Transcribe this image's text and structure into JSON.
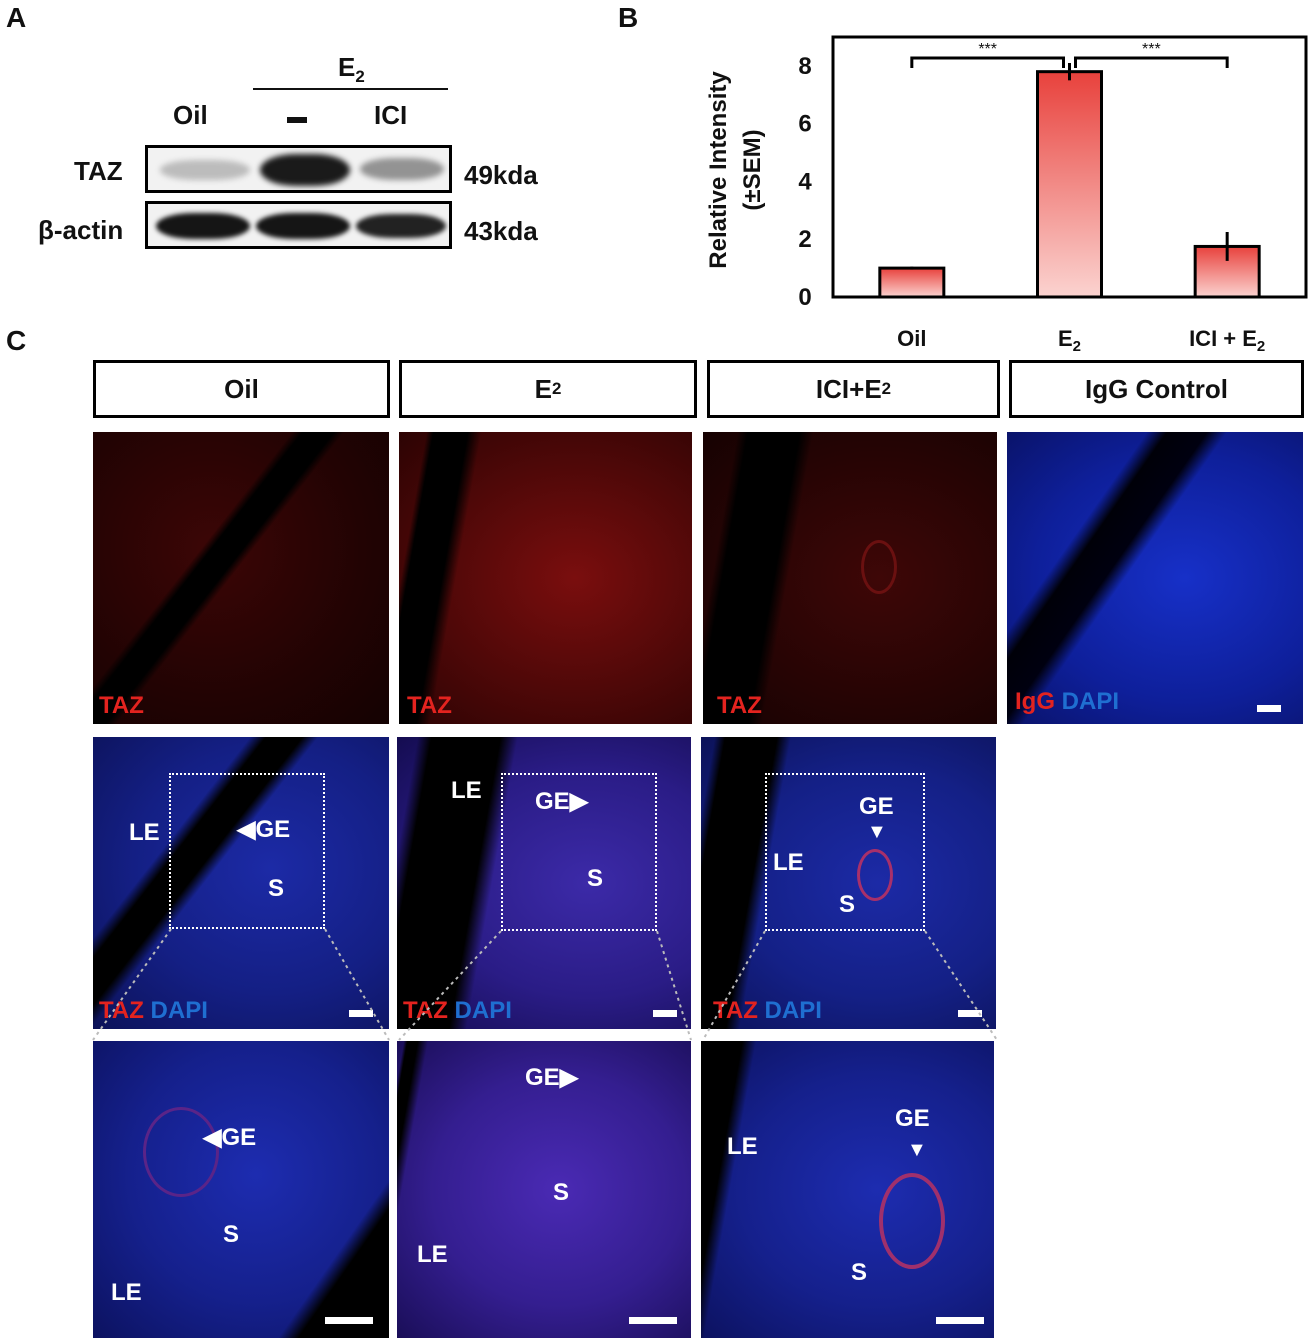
{
  "panels": {
    "a": "A",
    "b": "B",
    "c": "C"
  },
  "blot": {
    "header": "E",
    "header_sub": "2",
    "lanes": [
      "Oil",
      "–",
      "ICI"
    ],
    "rows": [
      {
        "name": "TAZ",
        "size": "49kda"
      },
      {
        "name": "β-actin",
        "size": "43kda"
      }
    ]
  },
  "chart_data": {
    "type": "bar",
    "categories": [
      "Oil",
      "E2",
      "ICI + E2"
    ],
    "category_labels": [
      {
        "main": "Oil",
        "sub": ""
      },
      {
        "main": "E",
        "sub": "2"
      },
      {
        "main": "ICI + E",
        "sub": "2"
      }
    ],
    "values": [
      1.0,
      7.8,
      1.75
    ],
    "errors": [
      0.05,
      0.3,
      0.5
    ],
    "ylim": [
      0,
      9
    ],
    "yticks": [
      "0",
      "2",
      "4",
      "6",
      "8"
    ],
    "ylabel_line1": "Relative Intensity",
    "ylabel_line2": "(±SEM)",
    "significance": [
      "***",
      "***"
    ],
    "colors": {
      "bar_top": "#e8413c",
      "bar_bottom": "#fbd3d0",
      "edge": "#000000"
    },
    "grid": false
  },
  "conditions": [
    {
      "main": "Oil",
      "sub": ""
    },
    {
      "main": "E",
      "sub": "2"
    },
    {
      "main": "ICI+E",
      "sub": "2"
    },
    {
      "main": "IgG Control",
      "sub": ""
    }
  ],
  "stain_labels": {
    "taz": "TAZ",
    "dapi": "DAPI",
    "igg": "IgG"
  },
  "tissue_labels": {
    "le": "LE",
    "ge": "GE",
    "s": "S"
  }
}
